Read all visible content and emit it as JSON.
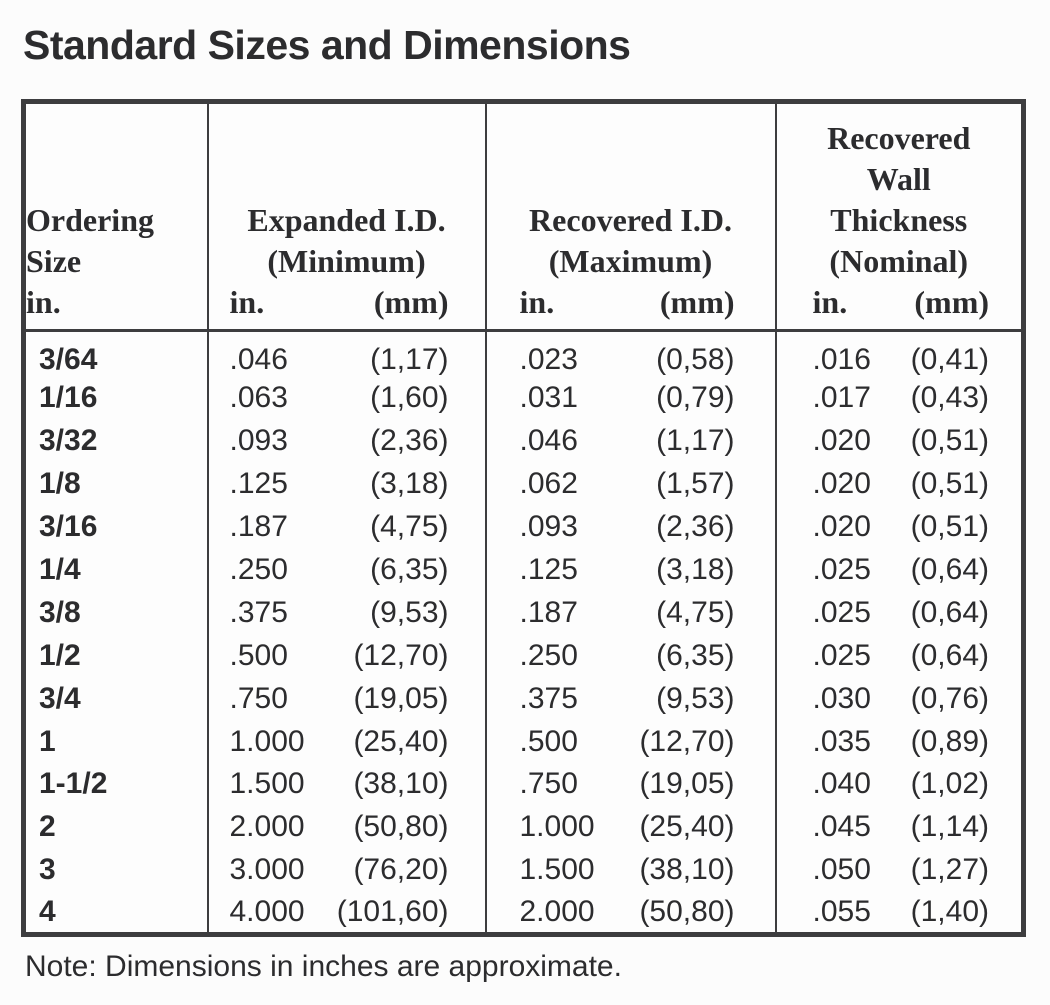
{
  "page": {
    "title": "Standard Sizes and Dimensions",
    "note": "Note: Dimensions in inches are approximate."
  },
  "colors": {
    "text": "#2c2c2e",
    "border": "#3d3d3f",
    "background": "#fdfdfd"
  },
  "table": {
    "columns": [
      {
        "name": "ordering-size",
        "title_lines": [
          "Ordering",
          "Size"
        ],
        "unit_in": "in."
      },
      {
        "name": "expanded-id",
        "title_lines": [
          "Expanded I.D.",
          "(Minimum)"
        ],
        "unit_in": "in.",
        "unit_mm": "(mm)"
      },
      {
        "name": "recovered-id",
        "title_lines": [
          "Recovered I.D.",
          "(Maximum)"
        ],
        "unit_in": "in.",
        "unit_mm": "(mm)"
      },
      {
        "name": "recovered-wall-thickness",
        "title_lines": [
          "Recovered",
          "Wall",
          "Thickness",
          "(Nominal)"
        ],
        "unit_in": "in.",
        "unit_mm": "(mm)"
      }
    ],
    "rows": [
      {
        "size": "3/64",
        "expanded_in": ".046",
        "expanded_mm": "(1,17)",
        "recovered_in": ".023",
        "recovered_mm": "(0,58)",
        "wall_in": ".016",
        "wall_mm": "(0,41)"
      },
      {
        "size": "1/16",
        "expanded_in": ".063",
        "expanded_mm": "(1,60)",
        "recovered_in": ".031",
        "recovered_mm": "(0,79)",
        "wall_in": ".017",
        "wall_mm": "(0,43)"
      },
      {
        "size": "3/32",
        "expanded_in": ".093",
        "expanded_mm": "(2,36)",
        "recovered_in": ".046",
        "recovered_mm": "(1,17)",
        "wall_in": ".020",
        "wall_mm": "(0,51)"
      },
      {
        "size": "1/8",
        "expanded_in": ".125",
        "expanded_mm": "(3,18)",
        "recovered_in": ".062",
        "recovered_mm": "(1,57)",
        "wall_in": ".020",
        "wall_mm": "(0,51)"
      },
      {
        "size": "3/16",
        "expanded_in": ".187",
        "expanded_mm": "(4,75)",
        "recovered_in": ".093",
        "recovered_mm": "(2,36)",
        "wall_in": ".020",
        "wall_mm": "(0,51)"
      },
      {
        "size": "1/4",
        "expanded_in": ".250",
        "expanded_mm": "(6,35)",
        "recovered_in": ".125",
        "recovered_mm": "(3,18)",
        "wall_in": ".025",
        "wall_mm": "(0,64)"
      },
      {
        "size": "3/8",
        "expanded_in": ".375",
        "expanded_mm": "(9,53)",
        "recovered_in": ".187",
        "recovered_mm": "(4,75)",
        "wall_in": ".025",
        "wall_mm": "(0,64)"
      },
      {
        "size": "1/2",
        "expanded_in": ".500",
        "expanded_mm": "(12,70)",
        "recovered_in": ".250",
        "recovered_mm": "(6,35)",
        "wall_in": ".025",
        "wall_mm": "(0,64)"
      },
      {
        "size": "3/4",
        "expanded_in": ".750",
        "expanded_mm": "(19,05)",
        "recovered_in": ".375",
        "recovered_mm": "(9,53)",
        "wall_in": ".030",
        "wall_mm": "(0,76)"
      },
      {
        "size": "1",
        "expanded_in": "1.000",
        "expanded_mm": "(25,40)",
        "recovered_in": ".500",
        "recovered_mm": "(12,70)",
        "wall_in": ".035",
        "wall_mm": "(0,89)"
      },
      {
        "size": "1-1/2",
        "expanded_in": "1.500",
        "expanded_mm": "(38,10)",
        "recovered_in": ".750",
        "recovered_mm": "(19,05)",
        "wall_in": ".040",
        "wall_mm": "(1,02)"
      },
      {
        "size": "2",
        "expanded_in": "2.000",
        "expanded_mm": "(50,80)",
        "recovered_in": "1.000",
        "recovered_mm": "(25,40)",
        "wall_in": ".045",
        "wall_mm": "(1,14)"
      },
      {
        "size": "3",
        "expanded_in": "3.000",
        "expanded_mm": "(76,20)",
        "recovered_in": "1.500",
        "recovered_mm": "(38,10)",
        "wall_in": ".050",
        "wall_mm": "(1,27)"
      },
      {
        "size": "4",
        "expanded_in": "4.000",
        "expanded_mm": "(101,60)",
        "recovered_in": "2.000",
        "recovered_mm": "(50,80)",
        "wall_in": ".055",
        "wall_mm": "(1,40)"
      }
    ]
  }
}
